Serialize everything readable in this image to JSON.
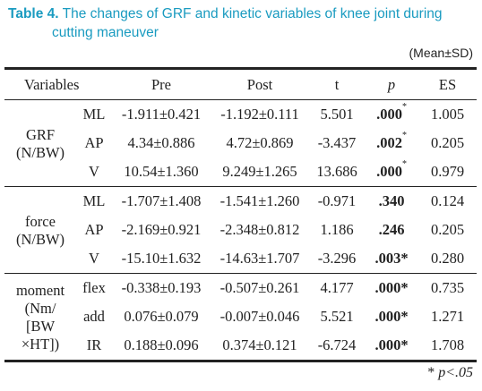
{
  "caption": {
    "label": "Table 4.",
    "line1": "The changes of GRF and kinetic variables of knee joint during",
    "line2": "cutting maneuver"
  },
  "unit": "(Mean±SD)",
  "header": {
    "variables": "Variables",
    "pre": "Pre",
    "post": "Post",
    "t": "t",
    "p": "p",
    "es": "ES"
  },
  "groups": [
    {
      "label_lines": [
        "GRF",
        "(N/BW)"
      ],
      "rows": [
        {
          "sub": "ML",
          "pre": "-1.911±0.421",
          "post": "-1.192±0.111",
          "t": "5.501",
          "p": ".000",
          "p_mark": "*",
          "es": "1.005"
        },
        {
          "sub": "AP",
          "pre": "4.34±0.886",
          "post": "4.72±0.869",
          "t": "-3.437",
          "p": ".002",
          "p_mark": "*",
          "es": "0.205"
        },
        {
          "sub": "V",
          "pre": "10.54±1.360",
          "post": "9.249±1.265",
          "t": "13.686",
          "p": ".000",
          "p_mark": "*",
          "es": "0.979"
        }
      ]
    },
    {
      "label_lines": [
        "force",
        "(N/BW)"
      ],
      "rows": [
        {
          "sub": "ML",
          "pre": "-1.707±1.408",
          "post": "-1.541±1.260",
          "t": "-0.971",
          "p": ".340",
          "p_mark": "",
          "es": "0.124"
        },
        {
          "sub": "AP",
          "pre": "-2.169±0.921",
          "post": "-2.348±0.812",
          "t": "1.186",
          "p": ".246",
          "p_mark": "",
          "es": "0.205"
        },
        {
          "sub": "V",
          "pre": "-15.10±1.632",
          "post": "-14.63±1.707",
          "t": "-3.296",
          "p": ".003*",
          "p_mark": "",
          "es": "0.280"
        }
      ]
    },
    {
      "label_lines": [
        "moment",
        "(Nm/",
        "[BW",
        "×HT])"
      ],
      "rows": [
        {
          "sub": "flex",
          "pre": "-0.338±0.193",
          "post": "-0.507±0.261",
          "t": "4.177",
          "p": ".000*",
          "p_mark": "",
          "es": "0.735"
        },
        {
          "sub": "add",
          "pre": "0.076±0.079",
          "post": "-0.007±0.046",
          "t": "5.521",
          "p": ".000*",
          "p_mark": "",
          "es": "1.271"
        },
        {
          "sub": "IR",
          "pre": "0.188±0.096",
          "post": "0.374±0.121",
          "t": "-6.724",
          "p": ".000*",
          "p_mark": "",
          "es": "1.708"
        }
      ]
    }
  ],
  "note": {
    "star": "*",
    "text": "p<.05"
  }
}
